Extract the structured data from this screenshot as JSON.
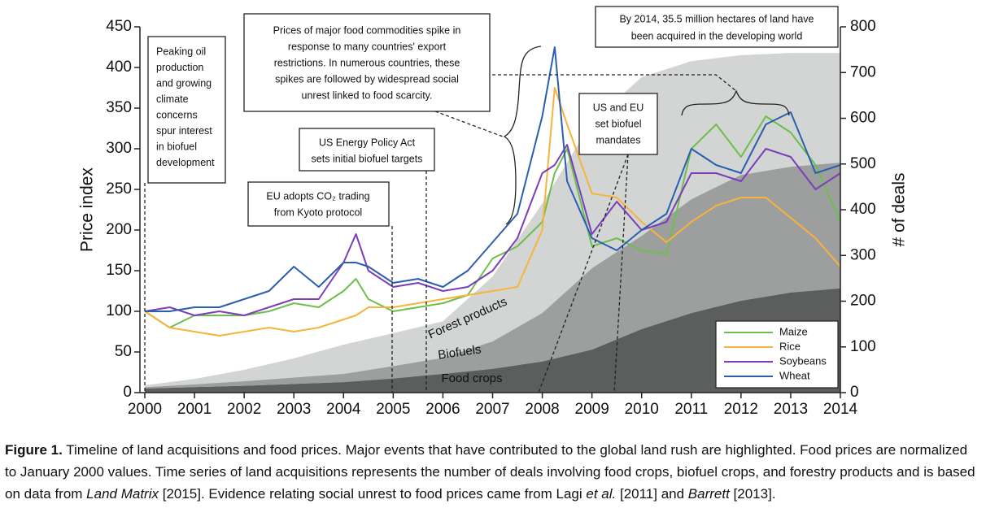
{
  "chart_data": {
    "type": "line",
    "ylabel": "Price index",
    "xlim": [
      2000,
      2014
    ],
    "xticks": [
      2000,
      2001,
      2002,
      2003,
      2004,
      2005,
      2006,
      2007,
      2008,
      2009,
      2010,
      2011,
      2012,
      2013,
      2014
    ],
    "ylim": [
      0,
      450
    ],
    "yticks": [
      0,
      50,
      100,
      150,
      200,
      250,
      300,
      350,
      400,
      450
    ],
    "y2label": "# of deals",
    "y2lim": [
      0,
      800
    ],
    "y2ticks": [
      0,
      100,
      200,
      300,
      400,
      500,
      600,
      700,
      800
    ],
    "legend": "lower right",
    "x": [
      2000,
      2000.5,
      2001,
      2001.5,
      2002,
      2002.5,
      2003,
      2003.5,
      2004,
      2004.25,
      2004.5,
      2005,
      2005.5,
      2006,
      2006.5,
      2007,
      2007.5,
      2008,
      2008.25,
      2008.5,
      2009,
      2009.5,
      2010,
      2010.5,
      2011,
      2011.5,
      2012,
      2012.5,
      2013,
      2013.5,
      2014
    ],
    "series": [
      {
        "name": "Maize",
        "color": "#6cbf4a",
        "values": [
          100,
          80,
          95,
          95,
          95,
          100,
          110,
          105,
          125,
          140,
          115,
          100,
          105,
          110,
          120,
          165,
          180,
          210,
          270,
          300,
          180,
          190,
          175,
          170,
          300,
          330,
          290,
          340,
          320,
          280,
          210
        ]
      },
      {
        "name": "Rice",
        "color": "#f7b33b",
        "values": [
          100,
          80,
          75,
          70,
          75,
          80,
          75,
          80,
          90,
          95,
          105,
          105,
          110,
          115,
          120,
          125,
          130,
          200,
          375,
          330,
          245,
          240,
          210,
          185,
          210,
          230,
          240,
          240,
          215,
          190,
          155
        ]
      },
      {
        "name": "Soybeans",
        "color": "#7a3fb8",
        "values": [
          100,
          105,
          95,
          100,
          95,
          105,
          115,
          115,
          160,
          195,
          150,
          130,
          135,
          125,
          130,
          150,
          190,
          270,
          280,
          305,
          195,
          235,
          200,
          210,
          270,
          270,
          260,
          300,
          290,
          250,
          270
        ]
      },
      {
        "name": "Wheat",
        "color": "#2a5fb0",
        "values": [
          100,
          100,
          105,
          105,
          115,
          125,
          155,
          130,
          160,
          160,
          155,
          135,
          140,
          130,
          150,
          185,
          220,
          340,
          425,
          260,
          190,
          175,
          200,
          220,
          300,
          280,
          270,
          330,
          345,
          270,
          280
        ]
      }
    ],
    "areas": {
      "type": "area",
      "stacked": true,
      "axis": "y2",
      "x": [
        2000,
        2001,
        2002,
        2003,
        2004,
        2005,
        2006,
        2007,
        2008,
        2009,
        2010,
        2011,
        2012,
        2013,
        2014
      ],
      "series": [
        {
          "name": "Food crops",
          "color": "#5c5d5d",
          "values": [
            9,
            12,
            15,
            19,
            23,
            31,
            41,
            52,
            68,
            94,
            139,
            174,
            201,
            219,
            228
          ]
        },
        {
          "name": "Biofuels",
          "color": "#9d9f9f",
          "values": [
            3,
            6,
            10,
            14,
            18,
            27,
            35,
            60,
            106,
            178,
            204,
            249,
            275,
            275,
            275
          ]
        },
        {
          "name": "Forest products",
          "color": "#d3d5d5",
          "values": [
            4,
            12,
            25,
            42,
            64,
            72,
            80,
            142,
            240,
            320,
            347,
            302,
            262,
            249,
            240
          ]
        }
      ]
    },
    "annotations": [
      {
        "lines": [
          "Peaking oil",
          "production",
          "and growing",
          "climate",
          "concerns",
          "spur interest",
          "in biofuel",
          "development"
        ]
      },
      {
        "lines": [
          "Prices of major food commodities spike in",
          "response to many countries' export",
          "restrictions. In numerous countries, these",
          "spikes are followed by widespread social",
          "unrest linked to food scarcity."
        ]
      },
      {
        "lines": [
          "By 2014, 35.5 million hectares of land have",
          "been acquired in the developing world"
        ]
      },
      {
        "lines": [
          "US Energy Policy Act",
          "sets initial biofuel targets"
        ]
      },
      {
        "lines": [
          "EU adopts CO₂ trading",
          "from Kyoto protocol"
        ]
      },
      {
        "lines": [
          "US and EU",
          "set biofuel",
          "mandates"
        ]
      }
    ]
  },
  "caption": {
    "label": "Figure 1.",
    "parts": [
      {
        "text": " Timeline of land acquisitions and food prices. Major events that have contributed to the global land rush are highlighted. Food prices are normalized to January 2000 values. Time series of land acquisitions represents the number of deals involving food crops, biofuel crops, and forestry products and is based on data from "
      },
      {
        "text": "Land Matrix",
        "italic": true
      },
      {
        "text": " [2015]. Evidence relating social unrest to food prices came from Lagi "
      },
      {
        "text": "et al.",
        "italic": true
      },
      {
        "text": " [2011] and "
      },
      {
        "text": "Barrett",
        "italic": true
      },
      {
        "text": " [2013]."
      }
    ]
  }
}
